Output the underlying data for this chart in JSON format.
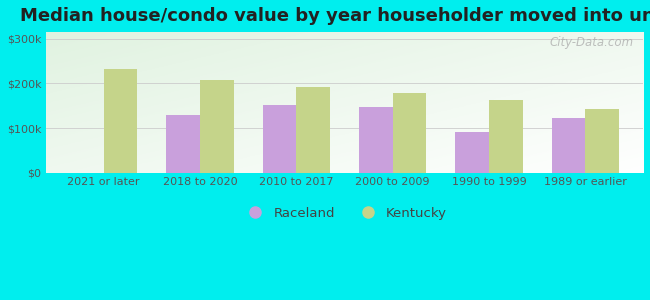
{
  "title": "Median house/condo value by year householder moved into unit",
  "categories": [
    "2021 or later",
    "2018 to 2020",
    "2010 to 2017",
    "2000 to 2009",
    "1990 to 1999",
    "1989 or earlier"
  ],
  "raceland_values": [
    0,
    130000,
    152000,
    148000,
    90000,
    122000
  ],
  "kentucky_values": [
    232000,
    208000,
    193000,
    178000,
    163000,
    143000
  ],
  "raceland_color": "#c9a0dc",
  "kentucky_color": "#c5d48a",
  "background_outer": "#00eeee",
  "yticks": [
    0,
    100000,
    200000,
    300000
  ],
  "ytick_labels": [
    "$0",
    "$100k",
    "$200k",
    "$300k"
  ],
  "ylim": [
    0,
    315000
  ],
  "legend_raceland": "Raceland",
  "legend_kentucky": "Kentucky",
  "watermark": "City-Data.com",
  "title_fontsize": 13,
  "tick_fontsize": 8,
  "bar_width": 0.35
}
